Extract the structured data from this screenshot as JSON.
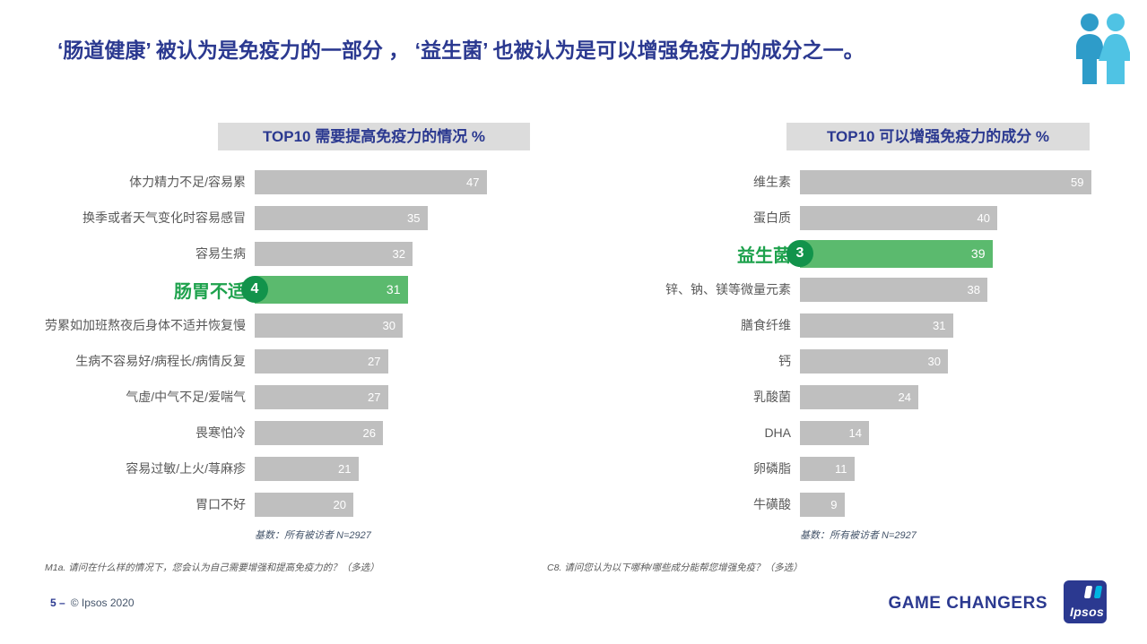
{
  "title": "‘肠道健康’ 被认为是免疫力的一部分 ， ‘益生菌’ 也被认为是可以增强免疫力的成分之一。",
  "chart_data": [
    {
      "type": "bar",
      "orientation": "horizontal",
      "title": "TOP10 需要提高免疫力的情况 %",
      "unit": "%",
      "categories": [
        "体力精力不足/容易累",
        "换季或者天气变化时容易感冒",
        "容易生病",
        "肠胃不适",
        "劳累如加班熬夜后身体不适并恢复慢",
        "生病不容易好/病程长/病情反复",
        "气虚/中气不足/爱喘气",
        "畏寒怕冷",
        "容易过敏/上火/荨麻疹",
        "胃口不好"
      ],
      "values": [
        47,
        35,
        32,
        31,
        30,
        27,
        27,
        26,
        21,
        20
      ],
      "highlight_index": 3,
      "highlight_rank": "4",
      "highlight_label": "肠胃不适",
      "base_note": "基数：所有被访者 N=2927",
      "footnote": "M1a. 请问在什么样的情况下，您会认为自己需要增强和提高免疫力的？（多选）"
    },
    {
      "type": "bar",
      "orientation": "horizontal",
      "title": "TOP10 可以增强免疫力的成分 %",
      "unit": "%",
      "categories": [
        "维生素",
        "蛋白质",
        "益生菌",
        "锌、钠、镁等微量元素",
        "膳食纤维",
        "钙",
        "乳酸菌",
        "DHA",
        "卵磷脂",
        "牛磺酸"
      ],
      "values": [
        59,
        40,
        39,
        38,
        31,
        30,
        24,
        14,
        11,
        9
      ],
      "highlight_index": 2,
      "highlight_rank": "3",
      "highlight_label": "益生菌",
      "base_note": "基数：所有被访者 N=2927",
      "footnote": "C8. 请问您认为以下哪种/哪些成分能帮您增强免疫？（多选）"
    }
  ],
  "footer": {
    "page_label": "5 –",
    "copyright": "© Ipsos 2020",
    "tagline": "GAME CHANGERS",
    "logo_text": "Ipsos"
  },
  "icons": {
    "header_icon": "two-people-icon"
  },
  "colors": {
    "brand_blue": "#2b3990",
    "bar_gray": "#bfbfbf",
    "highlight_green": "#5bba6e",
    "badge_green": "#12934b",
    "label_green": "#1ea24d",
    "icon_teal_dark": "#2e9cc9",
    "icon_teal_light": "#4fc3e4"
  }
}
